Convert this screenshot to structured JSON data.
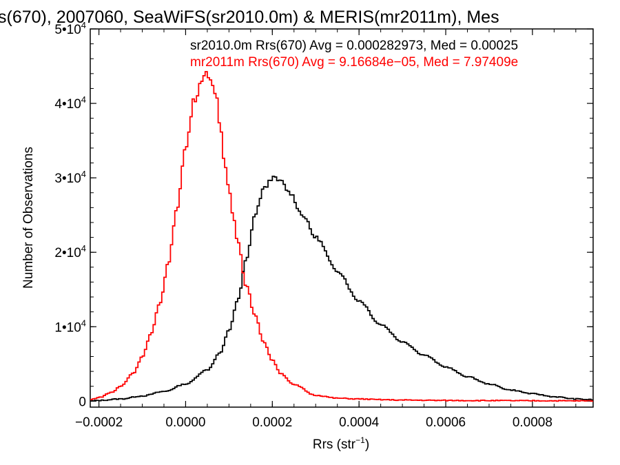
{
  "chart_data": {
    "type": "line",
    "title": "s(670), 2007060, SeaWiFS(sr2010.0m) & MERIS(mr2011m), Mes",
    "xlabel": "Rrs (str",
    "xlabel_sup": "−1",
    "xlabel_close": ")",
    "ylabel": "Number of Observations",
    "xlim": [
      -0.00022,
      0.00094
    ],
    "ylim": [
      -800,
      50000
    ],
    "x_ticks": [
      -0.0002,
      0.0,
      0.0002,
      0.0004,
      0.0006,
      0.0008
    ],
    "x_tick_labels": [
      "−0.0002",
      "0.0000",
      "0.0002",
      "0.0004",
      "0.0006",
      "0.0008"
    ],
    "y_ticks": [
      0,
      10000,
      20000,
      30000,
      40000,
      50000
    ],
    "y_tick_labels": [
      {
        "base": "0",
        "sup": ""
      },
      {
        "base": "1•10",
        "sup": "4"
      },
      {
        "base": "2•10",
        "sup": "4"
      },
      {
        "base": "3•10",
        "sup": "4"
      },
      {
        "base": "4•10",
        "sup": "4"
      },
      {
        "base": "5•10",
        "sup": "4"
      }
    ],
    "annotations": [
      {
        "text": "sr2010.0m Rrs(670) Avg = 0.000282973, Med = 0.00025",
        "color": "#000000"
      },
      {
        "text": "mr2011m Rrs(670) Avg = 9.16684e−05, Med = 7.97409e",
        "color": "#ff0000"
      }
    ],
    "series": [
      {
        "color": "#000000",
        "x": [
          -0.00022,
          -0.0002,
          -0.00015,
          -0.0001,
          -5e-05,
          0.0,
          5e-05,
          8e-05,
          0.0001,
          0.00012,
          0.00014,
          0.00016,
          0.00018,
          0.0002,
          0.00022,
          0.00024,
          0.00027,
          0.0003,
          0.00035,
          0.0004,
          0.00045,
          0.0005,
          0.00055,
          0.0006,
          0.00065,
          0.0007,
          0.00075,
          0.0008,
          0.00085,
          0.0009,
          0.00094
        ],
        "y": [
          0,
          100,
          300,
          700,
          1300,
          2300,
          4200,
          6500,
          9500,
          13500,
          19000,
          25000,
          28500,
          30000,
          29500,
          28000,
          25000,
          22000,
          17500,
          13500,
          10300,
          8000,
          6200,
          4600,
          3300,
          2300,
          1500,
          1000,
          600,
          300,
          200
        ]
      },
      {
        "color": "#ff0000",
        "x": [
          -0.00022,
          -0.0002,
          -0.00017,
          -0.00015,
          -0.00012,
          -0.0001,
          -8e-05,
          -6e-05,
          -4e-05,
          -2e-05,
          0.0,
          2e-05,
          4e-05,
          5e-05,
          6e-05,
          7e-05,
          8e-05,
          9e-05,
          0.0001,
          0.00011,
          0.00012,
          0.00014,
          0.00016,
          0.00018,
          0.0002,
          0.00022,
          0.00025,
          0.0003,
          0.00035,
          0.0004,
          0.00045,
          0.0005,
          0.0006,
          0.0007,
          0.0008,
          0.00094
        ],
        "y": [
          200,
          500,
          1200,
          2000,
          3800,
          6000,
          9000,
          13000,
          18500,
          26000,
          34000,
          40500,
          43500,
          44000,
          43000,
          41000,
          36500,
          32000,
          28500,
          25000,
          21500,
          15500,
          11500,
          8000,
          5500,
          3700,
          2200,
          800,
          400,
          300,
          200,
          150,
          100,
          80,
          60,
          40
        ]
      }
    ]
  }
}
